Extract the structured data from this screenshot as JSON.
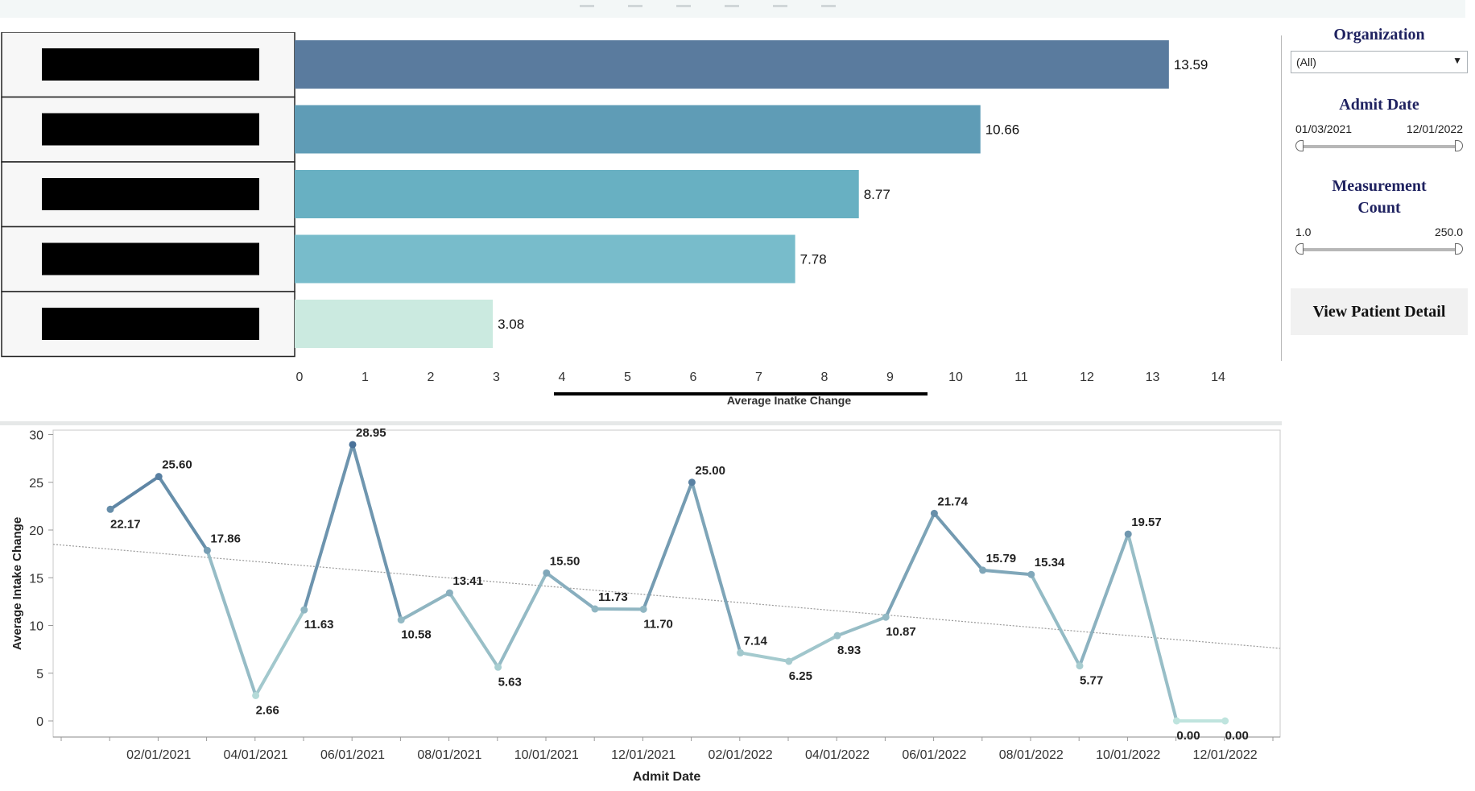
{
  "colors": {
    "bar_fill": [
      "#5a7b9e",
      "#5f9cb6",
      "#68b0c2",
      "#78bccb",
      "#cbeae0"
    ],
    "line_high": "#4a7299",
    "line_low": "#bfe4de",
    "trend_line": "#9a9a9a",
    "filter_title": "#1f2260",
    "redacted_box": "#000000"
  },
  "filters": {
    "organization": {
      "title": "Organization",
      "selected": "(All)",
      "caret_icon": "caret-down-icon"
    },
    "admit_date": {
      "title": "Admit Date",
      "min": "01/03/2021",
      "max": "12/01/2022"
    },
    "measurement_count": {
      "title_line1": "Measurement",
      "title_line2": "Count",
      "min": "1.0",
      "max": "250.0"
    },
    "view_button": "View Patient Detail"
  },
  "chart_data": [
    {
      "type": "bar",
      "orientation": "horizontal",
      "categories": [
        "",
        "",
        "",
        "",
        ""
      ],
      "category_labels_redacted": true,
      "values": [
        13.59,
        10.66,
        8.77,
        7.78,
        3.08
      ],
      "data_labels": [
        "13.59",
        "10.66",
        "8.77",
        "7.78",
        "3.08"
      ],
      "xlabel": "Average Inatke Change",
      "xlim": [
        0,
        14
      ],
      "x_ticks": [
        "0",
        "1",
        "2",
        "3",
        "4",
        "5",
        "6",
        "7",
        "8",
        "9",
        "10",
        "11",
        "12",
        "13",
        "14"
      ],
      "grid": false
    },
    {
      "type": "line",
      "xlabel": "Admit Date",
      "ylabel": "Average Intake Change",
      "ylim": [
        0,
        30
      ],
      "y_ticks": [
        "0",
        "5",
        "10",
        "15",
        "20",
        "25",
        "30"
      ],
      "x_ticks": [
        "02/01/2021",
        "04/01/2021",
        "06/01/2021",
        "08/01/2021",
        "10/01/2021",
        "12/01/2021",
        "02/01/2022",
        "04/01/2022",
        "06/01/2022",
        "08/01/2022",
        "10/01/2022",
        "12/01/2022"
      ],
      "x": [
        "01/2021",
        "02/2021",
        "03/2021",
        "04/2021",
        "05/2021",
        "06/2021",
        "07/2021",
        "08/2021",
        "09/2021",
        "10/2021",
        "11/2021",
        "12/2021",
        "01/2022",
        "02/2022",
        "03/2022",
        "04/2022",
        "05/2022",
        "06/2022",
        "07/2022",
        "08/2022",
        "09/2022",
        "10/2022",
        "11/2022",
        "12/2022"
      ],
      "values": [
        22.17,
        25.6,
        17.86,
        2.66,
        11.63,
        28.95,
        10.58,
        13.41,
        5.63,
        15.5,
        11.73,
        11.7,
        25.0,
        7.14,
        6.25,
        8.93,
        10.87,
        21.74,
        15.79,
        15.34,
        5.77,
        19.57,
        0.0,
        0.0
      ],
      "data_labels": [
        "22.17",
        "25.60",
        "17.86",
        "2.66",
        "11.63",
        "28.95",
        "10.58",
        "13.41",
        "5.63",
        "15.50",
        "11.73",
        "11.70",
        "25.00",
        "7.14",
        "6.25",
        "8.93",
        "10.87",
        "21.74",
        "15.79",
        "15.34",
        "5.77",
        "19.57",
        "0.00",
        "0.00"
      ],
      "label_side": [
        "below",
        "above",
        "above",
        "below",
        "below",
        "above",
        "below",
        "above",
        "below",
        "above",
        "above",
        "below",
        "above",
        "above",
        "below",
        "below",
        "below",
        "above",
        "above",
        "above",
        "below",
        "above",
        "below",
        "below"
      ],
      "trend_line": {
        "type": "linear",
        "start_value": 18.5,
        "end_value": 7.6
      },
      "grid": false
    }
  ]
}
